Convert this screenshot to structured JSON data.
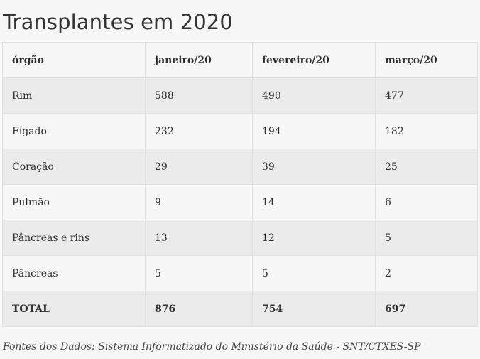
{
  "title": "Transplantes em 2020",
  "table": {
    "headers": [
      "órgão",
      "janeiro/20",
      "fevereiro/20",
      "março/20"
    ],
    "rows": [
      [
        "Rim",
        "588",
        "490",
        "477"
      ],
      [
        "Fígado",
        "232",
        "194",
        "182"
      ],
      [
        "Coração",
        "29",
        "39",
        "25"
      ],
      [
        "Pulmão",
        "9",
        "14",
        "6"
      ],
      [
        "Pâncreas e rins",
        "13",
        "12",
        "5"
      ],
      [
        "Pâncreas",
        "5",
        "5",
        "2"
      ]
    ],
    "total": [
      "TOTAL",
      "876",
      "754",
      "697"
    ]
  },
  "source": "Fontes dos Dados: Sistema Informatizado do Ministério da Saúde - SNT/CTXES-SP"
}
